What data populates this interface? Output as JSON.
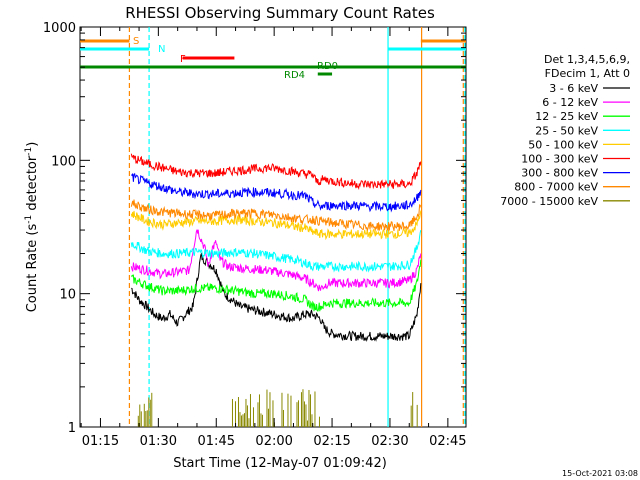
{
  "chart_data": {
    "type": "line",
    "title": "RHESSI Observing Summary Count Rates",
    "xlabel": "Start Time (12-May-07 01:09:42)",
    "ylabel_main": "Count Rate (s",
    "ylabel_sup1": "-1",
    "ylabel_mid": " detector",
    "ylabel_sup2": "-1",
    "ylabel_end": ")",
    "yscale": "log",
    "ylim": [
      1,
      1000
    ],
    "xlim_minutes": [
      69.7,
      169.7
    ],
    "x_tick_labels": [
      "01:15",
      "01:30",
      "01:45",
      "02:00",
      "02:15",
      "02:30",
      "02:45"
    ],
    "x_tick_minutes": [
      75,
      90,
      105,
      120,
      135,
      150,
      165
    ],
    "y_tick_labels": [
      "1",
      "10",
      "100",
      "1000"
    ],
    "y_tick_values": [
      1,
      10,
      100,
      1000
    ],
    "legend_header": [
      "Det 1,3,4,5,6,9,",
      "FDecim 1, Att 0"
    ],
    "legend_position": "right",
    "series": [
      {
        "name": "3 - 6 keV",
        "color": "#000000",
        "points": [
          [
            83,
            11
          ],
          [
            85,
            9
          ],
          [
            87,
            8
          ],
          [
            89,
            7
          ],
          [
            91,
            6.5
          ],
          [
            93,
            7
          ],
          [
            95,
            6
          ],
          [
            97,
            7
          ],
          [
            99,
            8
          ],
          [
            101,
            19
          ],
          [
            103,
            17
          ],
          [
            105,
            15
          ],
          [
            107,
            10
          ],
          [
            109,
            9
          ],
          [
            111,
            8
          ],
          [
            115,
            7.5
          ],
          [
            120,
            7
          ],
          [
            125,
            6.5
          ],
          [
            128,
            7
          ],
          [
            130,
            7
          ],
          [
            132,
            6.5
          ],
          [
            133,
            5.5
          ],
          [
            135,
            5
          ],
          [
            140,
            4.8
          ],
          [
            145,
            4.8
          ],
          [
            150,
            4.8
          ],
          [
            155,
            4.8
          ],
          [
            157,
            7
          ],
          [
            158,
            12
          ]
        ]
      },
      {
        "name": "6 - 12 keV",
        "color": "#ff00ff",
        "points": [
          [
            83,
            16
          ],
          [
            87,
            15
          ],
          [
            91,
            14
          ],
          [
            95,
            14.5
          ],
          [
            98,
            15
          ],
          [
            100,
            31
          ],
          [
            102,
            22
          ],
          [
            103,
            16
          ],
          [
            104,
            22
          ],
          [
            105,
            24
          ],
          [
            106,
            18
          ],
          [
            108,
            16
          ],
          [
            112,
            15.5
          ],
          [
            118,
            15
          ],
          [
            124,
            14
          ],
          [
            128,
            13
          ],
          [
            130,
            12
          ],
          [
            132,
            11
          ],
          [
            134,
            12
          ],
          [
            140,
            12
          ],
          [
            145,
            12
          ],
          [
            150,
            12
          ],
          [
            155,
            12.5
          ],
          [
            157,
            15
          ],
          [
            158,
            20
          ]
        ]
      },
      {
        "name": "12 - 25 keV",
        "color": "#00ff00",
        "points": [
          [
            83,
            13
          ],
          [
            87,
            11.5
          ],
          [
            91,
            10.5
          ],
          [
            95,
            10.5
          ],
          [
            100,
            11
          ],
          [
            105,
            11
          ],
          [
            110,
            10.5
          ],
          [
            115,
            10
          ],
          [
            120,
            10
          ],
          [
            125,
            9.5
          ],
          [
            128,
            9
          ],
          [
            130,
            8
          ],
          [
            132,
            8
          ],
          [
            134,
            8.5
          ],
          [
            140,
            8.5
          ],
          [
            145,
            8.5
          ],
          [
            150,
            8.5
          ],
          [
            155,
            8.5
          ],
          [
            157,
            12
          ],
          [
            158,
            18
          ]
        ]
      },
      {
        "name": "25 - 50 keV",
        "color": "#00ffff",
        "points": [
          [
            83,
            24
          ],
          [
            87,
            21
          ],
          [
            91,
            20
          ],
          [
            95,
            20
          ],
          [
            100,
            20.5
          ],
          [
            105,
            20
          ],
          [
            110,
            20.5
          ],
          [
            115,
            20
          ],
          [
            120,
            19
          ],
          [
            125,
            18
          ],
          [
            128,
            17
          ],
          [
            130,
            16
          ],
          [
            132,
            16
          ],
          [
            135,
            16
          ],
          [
            140,
            16
          ],
          [
            145,
            16
          ],
          [
            150,
            16
          ],
          [
            155,
            16.5
          ],
          [
            157,
            22
          ],
          [
            158,
            30
          ]
        ]
      },
      {
        "name": "50 - 100 keV",
        "color": "#ffcc00",
        "points": [
          [
            83,
            40
          ],
          [
            87,
            35
          ],
          [
            91,
            33
          ],
          [
            95,
            34
          ],
          [
            100,
            35
          ],
          [
            105,
            35
          ],
          [
            110,
            36
          ],
          [
            115,
            35
          ],
          [
            120,
            34
          ],
          [
            125,
            32
          ],
          [
            128,
            31
          ],
          [
            130,
            29
          ],
          [
            132,
            28
          ],
          [
            135,
            28
          ],
          [
            140,
            28
          ],
          [
            145,
            28
          ],
          [
            150,
            28
          ],
          [
            155,
            28.5
          ],
          [
            157,
            33
          ],
          [
            158,
            42
          ]
        ]
      },
      {
        "name": "100 - 300 keV",
        "color": "#ff0000",
        "points": [
          [
            83,
            105
          ],
          [
            87,
            95
          ],
          [
            91,
            88
          ],
          [
            95,
            82
          ],
          [
            100,
            80
          ],
          [
            105,
            80
          ],
          [
            110,
            84
          ],
          [
            115,
            86
          ],
          [
            118,
            88
          ],
          [
            122,
            86
          ],
          [
            126,
            81
          ],
          [
            128,
            79
          ],
          [
            130,
            78
          ],
          [
            131,
            69
          ],
          [
            133,
            72
          ],
          [
            135,
            70
          ],
          [
            140,
            67
          ],
          [
            145,
            66
          ],
          [
            150,
            66
          ],
          [
            155,
            66
          ],
          [
            157,
            80
          ],
          [
            158,
            98
          ]
        ]
      },
      {
        "name": "300 - 800 keV",
        "color": "#0000ff",
        "points": [
          [
            83,
            75
          ],
          [
            87,
            68
          ],
          [
            91,
            63
          ],
          [
            95,
            58
          ],
          [
            100,
            56
          ],
          [
            105,
            56
          ],
          [
            110,
            57
          ],
          [
            115,
            58
          ],
          [
            120,
            57
          ],
          [
            125,
            55
          ],
          [
            128,
            54
          ],
          [
            130,
            48
          ],
          [
            132,
            45
          ],
          [
            135,
            46
          ],
          [
            140,
            46
          ],
          [
            145,
            45
          ],
          [
            150,
            45
          ],
          [
            155,
            46
          ],
          [
            157,
            52
          ],
          [
            158,
            60
          ]
        ]
      },
      {
        "name": "800 - 7000 keV",
        "color": "#ff8800",
        "points": [
          [
            83,
            48
          ],
          [
            87,
            43
          ],
          [
            91,
            41
          ],
          [
            95,
            40
          ],
          [
            100,
            39
          ],
          [
            105,
            38.5
          ],
          [
            110,
            40
          ],
          [
            115,
            40
          ],
          [
            120,
            39
          ],
          [
            125,
            37
          ],
          [
            128,
            36
          ],
          [
            130,
            36
          ],
          [
            132,
            35
          ],
          [
            135,
            34
          ],
          [
            140,
            33
          ],
          [
            145,
            32
          ],
          [
            150,
            32
          ],
          [
            155,
            32
          ],
          [
            157,
            38
          ],
          [
            158,
            46
          ]
        ]
      },
      {
        "name": "7000 - 15000 keV",
        "color": "#888800",
        "points": []
      }
    ],
    "flag_bars": [
      {
        "label": "S",
        "color": "#ff8800",
        "segments": [
          [
            69.7,
            82.5
          ],
          [
            158,
            169.7
          ]
        ]
      },
      {
        "label": "N",
        "color": "#00ffff",
        "segments": [
          [
            69.7,
            87.6
          ],
          [
            149.5,
            169.7
          ]
        ]
      },
      {
        "label": "F",
        "color": "#ff0000",
        "segments": [
          [
            96.3,
            109.7
          ]
        ]
      },
      {
        "label": "RD0",
        "color": "#008800",
        "segments": [
          [
            69.7,
            169.7
          ]
        ]
      },
      {
        "label": "RD4",
        "color": "#008800",
        "segments": [
          [
            131.3,
            135.0
          ]
        ]
      }
    ],
    "vlines": [
      {
        "x": 82.5,
        "color": "#ff8800",
        "style": "dashed"
      },
      {
        "x": 87.6,
        "color": "#00ffff",
        "style": "dashed"
      },
      {
        "x": 149.5,
        "color": "#00ffff",
        "style": "solid"
      },
      {
        "x": 158.2,
        "color": "#ff8800",
        "style": "solid"
      },
      {
        "x": 169.4,
        "color": "#00ffff",
        "style": "dashed"
      },
      {
        "x": 169.0,
        "color": "#ff8800",
        "style": "dashed"
      }
    ],
    "baseline_bursts_series": "7000 - 15000 keV",
    "baseline_burst_ranges": [
      [
        84.8,
        88.3
      ],
      [
        109.2,
        132.0
      ],
      [
        155.5,
        158.2
      ]
    ]
  },
  "footer_timestamp": "15-Oct-2021 03:08"
}
